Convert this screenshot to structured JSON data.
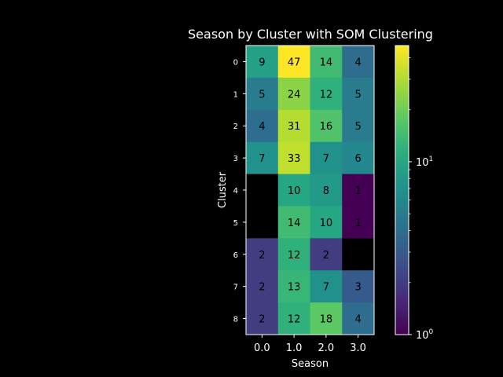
{
  "chart_data": {
    "type": "heatmap",
    "title": "Season by Cluster with SOM Clustering",
    "xlabel": "Season",
    "ylabel": "Cluster",
    "x_categories": [
      "0.0",
      "1.0",
      "2.0",
      "3.0"
    ],
    "y_categories": [
      "0",
      "1",
      "2",
      "3",
      "4",
      "5",
      "6",
      "7",
      "8"
    ],
    "values": [
      [
        9,
        47,
        14,
        4
      ],
      [
        5,
        24,
        12,
        5
      ],
      [
        4,
        31,
        16,
        5
      ],
      [
        7,
        33,
        7,
        6
      ],
      [
        null,
        10,
        8,
        1
      ],
      [
        null,
        14,
        10,
        1
      ],
      [
        2,
        12,
        2,
        null
      ],
      [
        2,
        13,
        7,
        3
      ],
      [
        2,
        12,
        18,
        4
      ]
    ],
    "colorscale": "viridis",
    "color_scale_type": "log",
    "color_range": [
      1,
      47
    ],
    "colorbar_ticks": [
      {
        "value": 1,
        "base": "10",
        "exp": "0"
      },
      {
        "value": 10,
        "base": "10",
        "exp": "1"
      }
    ],
    "missing_color": "#000000",
    "background": "#000000",
    "foreground": "#ffffff"
  }
}
